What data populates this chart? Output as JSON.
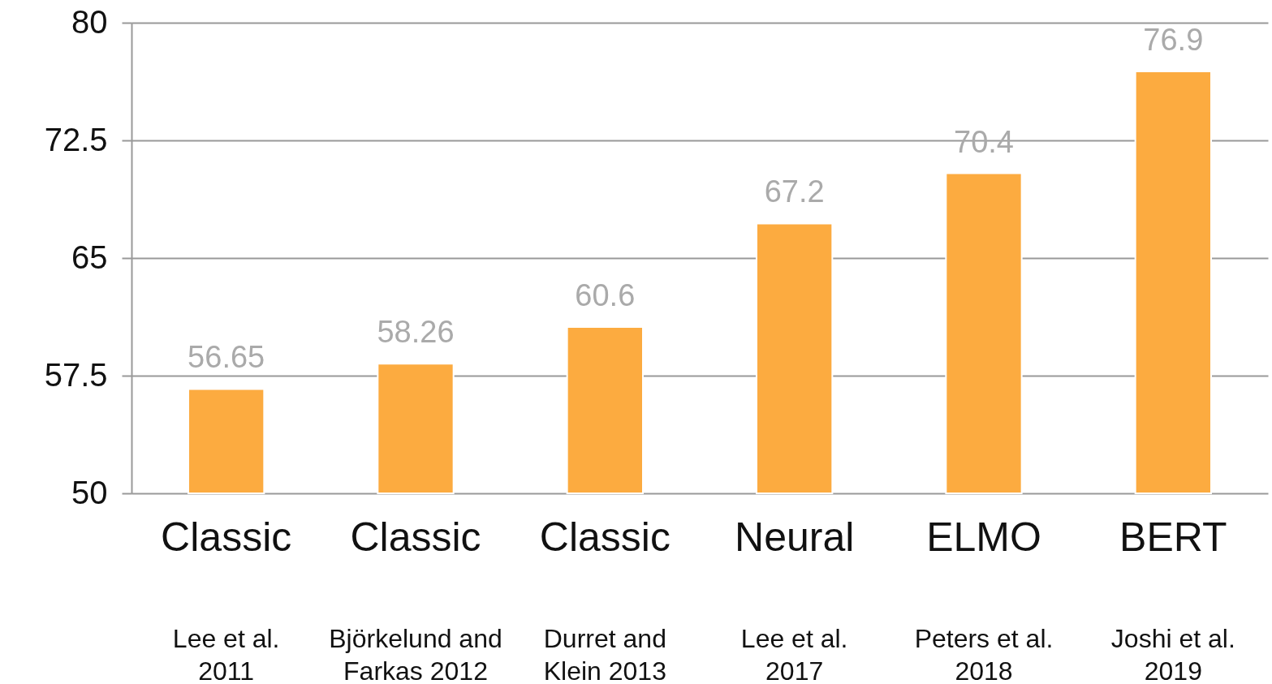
{
  "chart_data": {
    "type": "bar",
    "categories": [
      "Classic",
      "Classic",
      "Classic",
      "Neural",
      "ELMO",
      "BERT"
    ],
    "values": [
      56.65,
      58.26,
      60.6,
      67.2,
      70.4,
      76.9
    ],
    "color": "#fcab40",
    "ylim": [
      50,
      80
    ],
    "yticks": [
      50,
      57.5,
      65,
      72.5,
      80
    ],
    "grid": "y",
    "data_labels": true,
    "annotations": [
      "Lee et al.\n2011",
      "Björkelund and\nFarkas 2012",
      "Durret and\nKlein 2013",
      "Lee et al.\n2017",
      "Peters et al.\n2018",
      "Joshi et al.\n2019"
    ]
  }
}
